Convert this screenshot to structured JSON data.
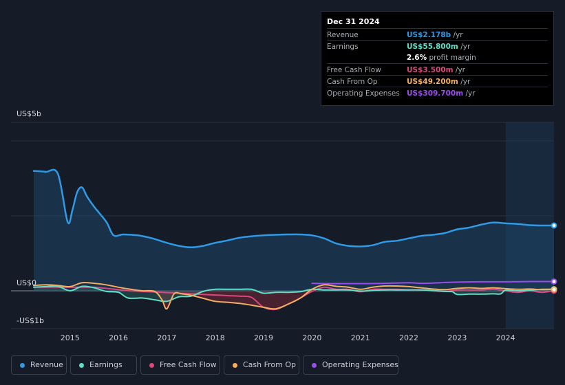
{
  "tooltip": {
    "date": "Dec 31 2024",
    "rows": [
      {
        "label": "Revenue",
        "value": "US$2.178b",
        "unit": "/yr",
        "color": "#2f9ae6"
      },
      {
        "label": "Earnings",
        "value": "US$55.800m",
        "unit": "/yr",
        "color": "#5ee0c8"
      },
      {
        "label": "",
        "value": "2.6%",
        "unit": "profit margin",
        "color": "#ffffff"
      },
      {
        "label": "Free Cash Flow",
        "value": "US$3.500m",
        "unit": "/yr",
        "color": "#d9487f"
      },
      {
        "label": "Cash From Op",
        "value": "US$49.200m",
        "unit": "/yr",
        "color": "#f2ae62"
      },
      {
        "label": "Operating Expenses",
        "value": "US$309.700m",
        "unit": "/yr",
        "color": "#9b4ef0"
      }
    ]
  },
  "legend": [
    {
      "label": "Revenue",
      "color": "#2f9ae6"
    },
    {
      "label": "Earnings",
      "color": "#5ee0c8"
    },
    {
      "label": "Free Cash Flow",
      "color": "#d9487f"
    },
    {
      "label": "Cash From Op",
      "color": "#f2ae62"
    },
    {
      "label": "Operating Expenses",
      "color": "#9b4ef0"
    }
  ],
  "chart_data": {
    "type": "line",
    "title": "",
    "xlabel": "",
    "ylabel": "",
    "y_tick_labels": [
      "US$5b",
      "US$0",
      "-US$1b"
    ],
    "ylim": [
      -1,
      5
    ],
    "xlim": [
      2014.25,
      2025.0
    ],
    "x_ticks": [
      2015,
      2016,
      2017,
      2018,
      2019,
      2020,
      2021,
      2022,
      2023,
      2024
    ],
    "highlight_start": 2024.0,
    "series": [
      {
        "name": "Revenue",
        "color": "#2f9ae6",
        "fill": true,
        "x": [
          2014.25,
          2014.5,
          2014.75,
          2014.95,
          2015.05,
          2015.15,
          2015.25,
          2015.35,
          2015.5,
          2015.75,
          2015.9,
          2016.1,
          2016.4,
          2016.7,
          2017.0,
          2017.25,
          2017.5,
          2017.75,
          2018.0,
          2018.25,
          2018.5,
          2018.75,
          2019.0,
          2019.25,
          2019.5,
          2019.75,
          2020.0,
          2020.25,
          2020.5,
          2020.75,
          2021.0,
          2021.25,
          2021.5,
          2021.75,
          2022.0,
          2022.25,
          2022.5,
          2022.75,
          2023.0,
          2023.25,
          2023.5,
          2023.75,
          2024.0,
          2024.25,
          2024.5,
          2024.75,
          2025.0
        ],
        "y": [
          4.0,
          3.97,
          3.9,
          2.3,
          2.7,
          3.3,
          3.45,
          3.15,
          2.8,
          2.3,
          1.85,
          1.88,
          1.85,
          1.75,
          1.6,
          1.5,
          1.45,
          1.5,
          1.6,
          1.68,
          1.77,
          1.82,
          1.85,
          1.87,
          1.88,
          1.88,
          1.85,
          1.75,
          1.58,
          1.5,
          1.48,
          1.52,
          1.63,
          1.67,
          1.75,
          1.83,
          1.87,
          1.93,
          2.05,
          2.11,
          2.21,
          2.28,
          2.25,
          2.23,
          2.19,
          2.18,
          2.178
        ]
      },
      {
        "name": "Earnings",
        "color": "#5ee0c8",
        "fill": false,
        "x": [
          2014.25,
          2014.5,
          2014.75,
          2015.0,
          2015.25,
          2015.5,
          2015.75,
          2016.0,
          2016.2,
          2016.5,
          2016.75,
          2017.0,
          2017.25,
          2017.5,
          2017.75,
          2018.0,
          2018.25,
          2018.5,
          2018.75,
          2019.0,
          2019.25,
          2019.5,
          2019.75,
          2020.0,
          2020.25,
          2020.5,
          2020.75,
          2021.0,
          2021.25,
          2021.5,
          2021.75,
          2022.0,
          2022.25,
          2022.5,
          2022.75,
          2022.9,
          2023.0,
          2023.25,
          2023.5,
          2023.75,
          2023.9,
          2024.0,
          2024.25,
          2024.5,
          2024.75,
          2025.0
        ],
        "y": [
          0.12,
          0.14,
          0.15,
          0.0,
          0.15,
          0.1,
          -0.02,
          -0.05,
          -0.24,
          -0.24,
          -0.3,
          -0.35,
          -0.2,
          -0.18,
          -0.02,
          0.05,
          0.05,
          0.05,
          0.05,
          -0.08,
          -0.05,
          -0.05,
          -0.03,
          0.05,
          0.03,
          0.03,
          0.03,
          -0.01,
          0.01,
          0.03,
          0.03,
          0.03,
          0.03,
          0.01,
          -0.02,
          -0.03,
          -0.12,
          -0.11,
          -0.11,
          -0.1,
          -0.1,
          0.02,
          0.0,
          0.02,
          0.05,
          0.0558
        ]
      },
      {
        "name": "Free Cash Flow",
        "color": "#d9487f",
        "fill": false,
        "x": [
          2014.25,
          2014.5,
          2014.75,
          2015.0,
          2015.25,
          2015.5,
          2015.75,
          2016.0,
          2016.25,
          2016.5,
          2016.75,
          2017.0,
          2017.25,
          2017.5,
          2017.75,
          2018.0,
          2018.25,
          2018.5,
          2018.75,
          2019.0,
          2019.25,
          2019.5,
          2019.75,
          2020.0,
          2020.25,
          2020.5,
          2020.75,
          2021.0,
          2021.25,
          2021.5,
          2021.75,
          2022.0,
          2022.25,
          2022.5,
          2022.75,
          2023.0,
          2023.25,
          2023.5,
          2023.75,
          2024.0,
          2024.25,
          2024.5,
          2024.75,
          2025.0
        ],
        "y": [
          0.12,
          0.12,
          0.12,
          0.12,
          0.12,
          0.12,
          0.08,
          0.04,
          0.0,
          -0.02,
          -0.04,
          -0.06,
          -0.08,
          -0.1,
          -0.12,
          -0.14,
          -0.16,
          -0.18,
          -0.22,
          -0.55,
          -0.62,
          -0.45,
          -0.25,
          -0.02,
          0.12,
          0.05,
          0.05,
          -0.03,
          0.05,
          0.05,
          0.05,
          0.03,
          0.02,
          0.0,
          -0.02,
          0.03,
          0.03,
          0.03,
          0.05,
          0.0,
          -0.05,
          0.0,
          -0.05,
          0.0035
        ]
      },
      {
        "name": "Cash From Op",
        "color": "#f2ae62",
        "fill": false,
        "x": [
          2014.25,
          2014.5,
          2014.75,
          2015.0,
          2015.25,
          2015.5,
          2015.75,
          2016.0,
          2016.25,
          2016.5,
          2016.75,
          2016.9,
          2017.0,
          2017.15,
          2017.3,
          2017.5,
          2017.75,
          2018.0,
          2018.25,
          2018.5,
          2018.75,
          2019.0,
          2019.25,
          2019.5,
          2019.75,
          2020.0,
          2020.25,
          2020.5,
          2020.75,
          2021.0,
          2021.25,
          2021.5,
          2021.75,
          2022.0,
          2022.25,
          2022.5,
          2022.75,
          2023.0,
          2023.25,
          2023.5,
          2023.75,
          2024.0,
          2024.25,
          2024.5,
          2024.75,
          2025.0
        ],
        "y": [
          0.18,
          0.2,
          0.18,
          0.14,
          0.27,
          0.25,
          0.2,
          0.12,
          0.05,
          0.0,
          -0.02,
          -0.3,
          -0.6,
          -0.1,
          -0.1,
          -0.15,
          -0.25,
          -0.35,
          -0.38,
          -0.42,
          -0.48,
          -0.55,
          -0.6,
          -0.45,
          -0.25,
          0.05,
          0.2,
          0.15,
          0.12,
          0.05,
          0.12,
          0.16,
          0.16,
          0.14,
          0.1,
          0.06,
          0.04,
          0.08,
          0.1,
          0.08,
          0.1,
          0.07,
          0.05,
          0.06,
          0.04,
          0.0492
        ]
      },
      {
        "name": "Operating Expenses",
        "color": "#9b4ef0",
        "fill": false,
        "x": [
          2020.0,
          2020.5,
          2021.0,
          2021.5,
          2022.0,
          2022.25,
          2022.5,
          2023.0,
          2023.5,
          2024.0,
          2024.5,
          2025.0
        ],
        "y": [
          0.25,
          0.24,
          0.24,
          0.25,
          0.27,
          0.25,
          0.26,
          0.29,
          0.3,
          0.3,
          0.31,
          0.3097
        ]
      }
    ]
  }
}
